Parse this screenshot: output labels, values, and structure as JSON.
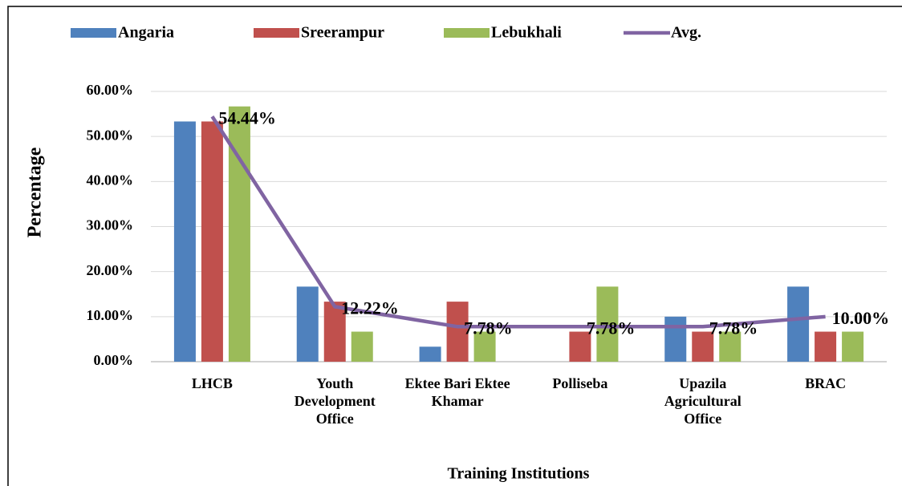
{
  "chart_data": {
    "type": "bar",
    "categories": [
      "LHCB",
      "Youth Development Office",
      "Ektee Bari Ektee Khamar",
      "Polliseba",
      "Upazila Agricultural Office",
      "BRAC"
    ],
    "series": [
      {
        "name": "Angaria",
        "color": "#4f81bd",
        "values": [
          53.33,
          16.67,
          3.33,
          0,
          10,
          16.67
        ]
      },
      {
        "name": "Sreerampur",
        "color": "#c0504d",
        "values": [
          53.33,
          13.33,
          13.33,
          6.67,
          6.67,
          6.67
        ]
      },
      {
        "name": "Lebukhali",
        "color": "#9bbb59",
        "values": [
          56.67,
          6.67,
          6.67,
          16.67,
          6.67,
          6.67
        ]
      },
      {
        "name": "Avg.",
        "type": "line",
        "color": "#8064a2",
        "values": [
          54.44,
          12.22,
          7.78,
          7.78,
          7.78,
          10.0
        ],
        "value_labels": [
          "54.44%",
          "12.22%",
          "7.78%",
          "7.78%",
          "7.78%",
          "10.00%"
        ]
      }
    ],
    "ylabel": "Percentage",
    "xlabel": "Training Institutions",
    "ylim": [
      0,
      60
    ],
    "yticks": [
      {
        "value": 0,
        "label": "0.00%"
      },
      {
        "value": 10,
        "label": "10.00%"
      },
      {
        "value": 20,
        "label": "20.00%"
      },
      {
        "value": 30,
        "label": "30.00%"
      },
      {
        "value": 40,
        "label": "40.00%"
      },
      {
        "value": 50,
        "label": "50.00%"
      },
      {
        "value": 60,
        "label": "60.00%"
      }
    ],
    "grid": true,
    "legend": "top"
  }
}
